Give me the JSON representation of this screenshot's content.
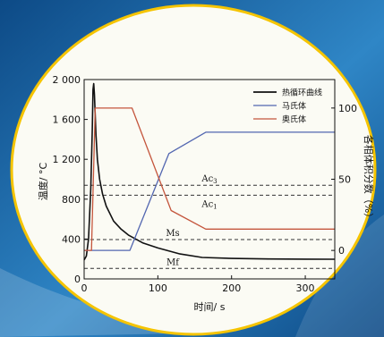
{
  "colors": {
    "background_dark": "#0d4a86",
    "background_light": "#2f86c6",
    "plate_fill": "#fbfbf4",
    "plate_border": "#f5c400",
    "thermal_cycle": "#111111",
    "martensite": "#5266b0",
    "austenite": "#c4553c",
    "dashed": "#333333"
  },
  "chart_data": {
    "type": "line",
    "xlabel": "时间/ s",
    "ylabel_left": "温度/ °C",
    "ylabel_right": "各相体积分数（%）",
    "xlim": [
      0,
      340
    ],
    "ylim_left": [
      0,
      2000
    ],
    "ylim_right": [
      -20,
      120
    ],
    "x_ticks": [
      0,
      100,
      200,
      300
    ],
    "x_tick_labels": [
      "0",
      "100",
      "200",
      "300"
    ],
    "y_ticks_left": [
      0,
      400,
      800,
      1200,
      1600,
      2000
    ],
    "y_tick_labels_left": [
      "0",
      "400",
      "800",
      "1 200",
      "1 600",
      "2 000"
    ],
    "y_ticks_right": [
      0,
      50,
      100
    ],
    "y_tick_labels_right": [
      "0",
      "50",
      "100"
    ],
    "legend_position": "top-right",
    "series": [
      {
        "name": "热循环曲线",
        "axis": "left",
        "color": "#111111",
        "x": [
          0,
          3,
          6,
          9,
          11,
          12,
          13,
          14,
          16,
          18,
          21,
          25,
          30,
          40,
          50,
          60,
          80,
          100,
          130,
          160,
          200,
          250,
          300,
          340
        ],
        "y": [
          190,
          230,
          400,
          900,
          1500,
          1900,
          1960,
          1850,
          1450,
          1200,
          1000,
          850,
          730,
          580,
          500,
          440,
          360,
          310,
          250,
          215,
          205,
          200,
          198,
          197
        ]
      },
      {
        "name": "马氏体",
        "axis": "right",
        "color": "#5266b0",
        "x": [
          0,
          62,
          115,
          165,
          340
        ],
        "y": [
          0,
          0,
          68,
          83,
          83
        ]
      },
      {
        "name": "奥氏体",
        "axis": "right",
        "color": "#c4553c",
        "x": [
          0,
          10,
          15,
          65,
          118,
          165,
          340
        ],
        "y": [
          0,
          0,
          100,
          100,
          28,
          15,
          15
        ]
      }
    ],
    "reference_lines": [
      {
        "label": "Ac",
        "sub": "3",
        "y": 940
      },
      {
        "label": "Ac",
        "sub": "1",
        "y": 840
      },
      {
        "label": "Ms",
        "y": 395
      },
      {
        "label": "Mf",
        "y": 105
      }
    ]
  }
}
